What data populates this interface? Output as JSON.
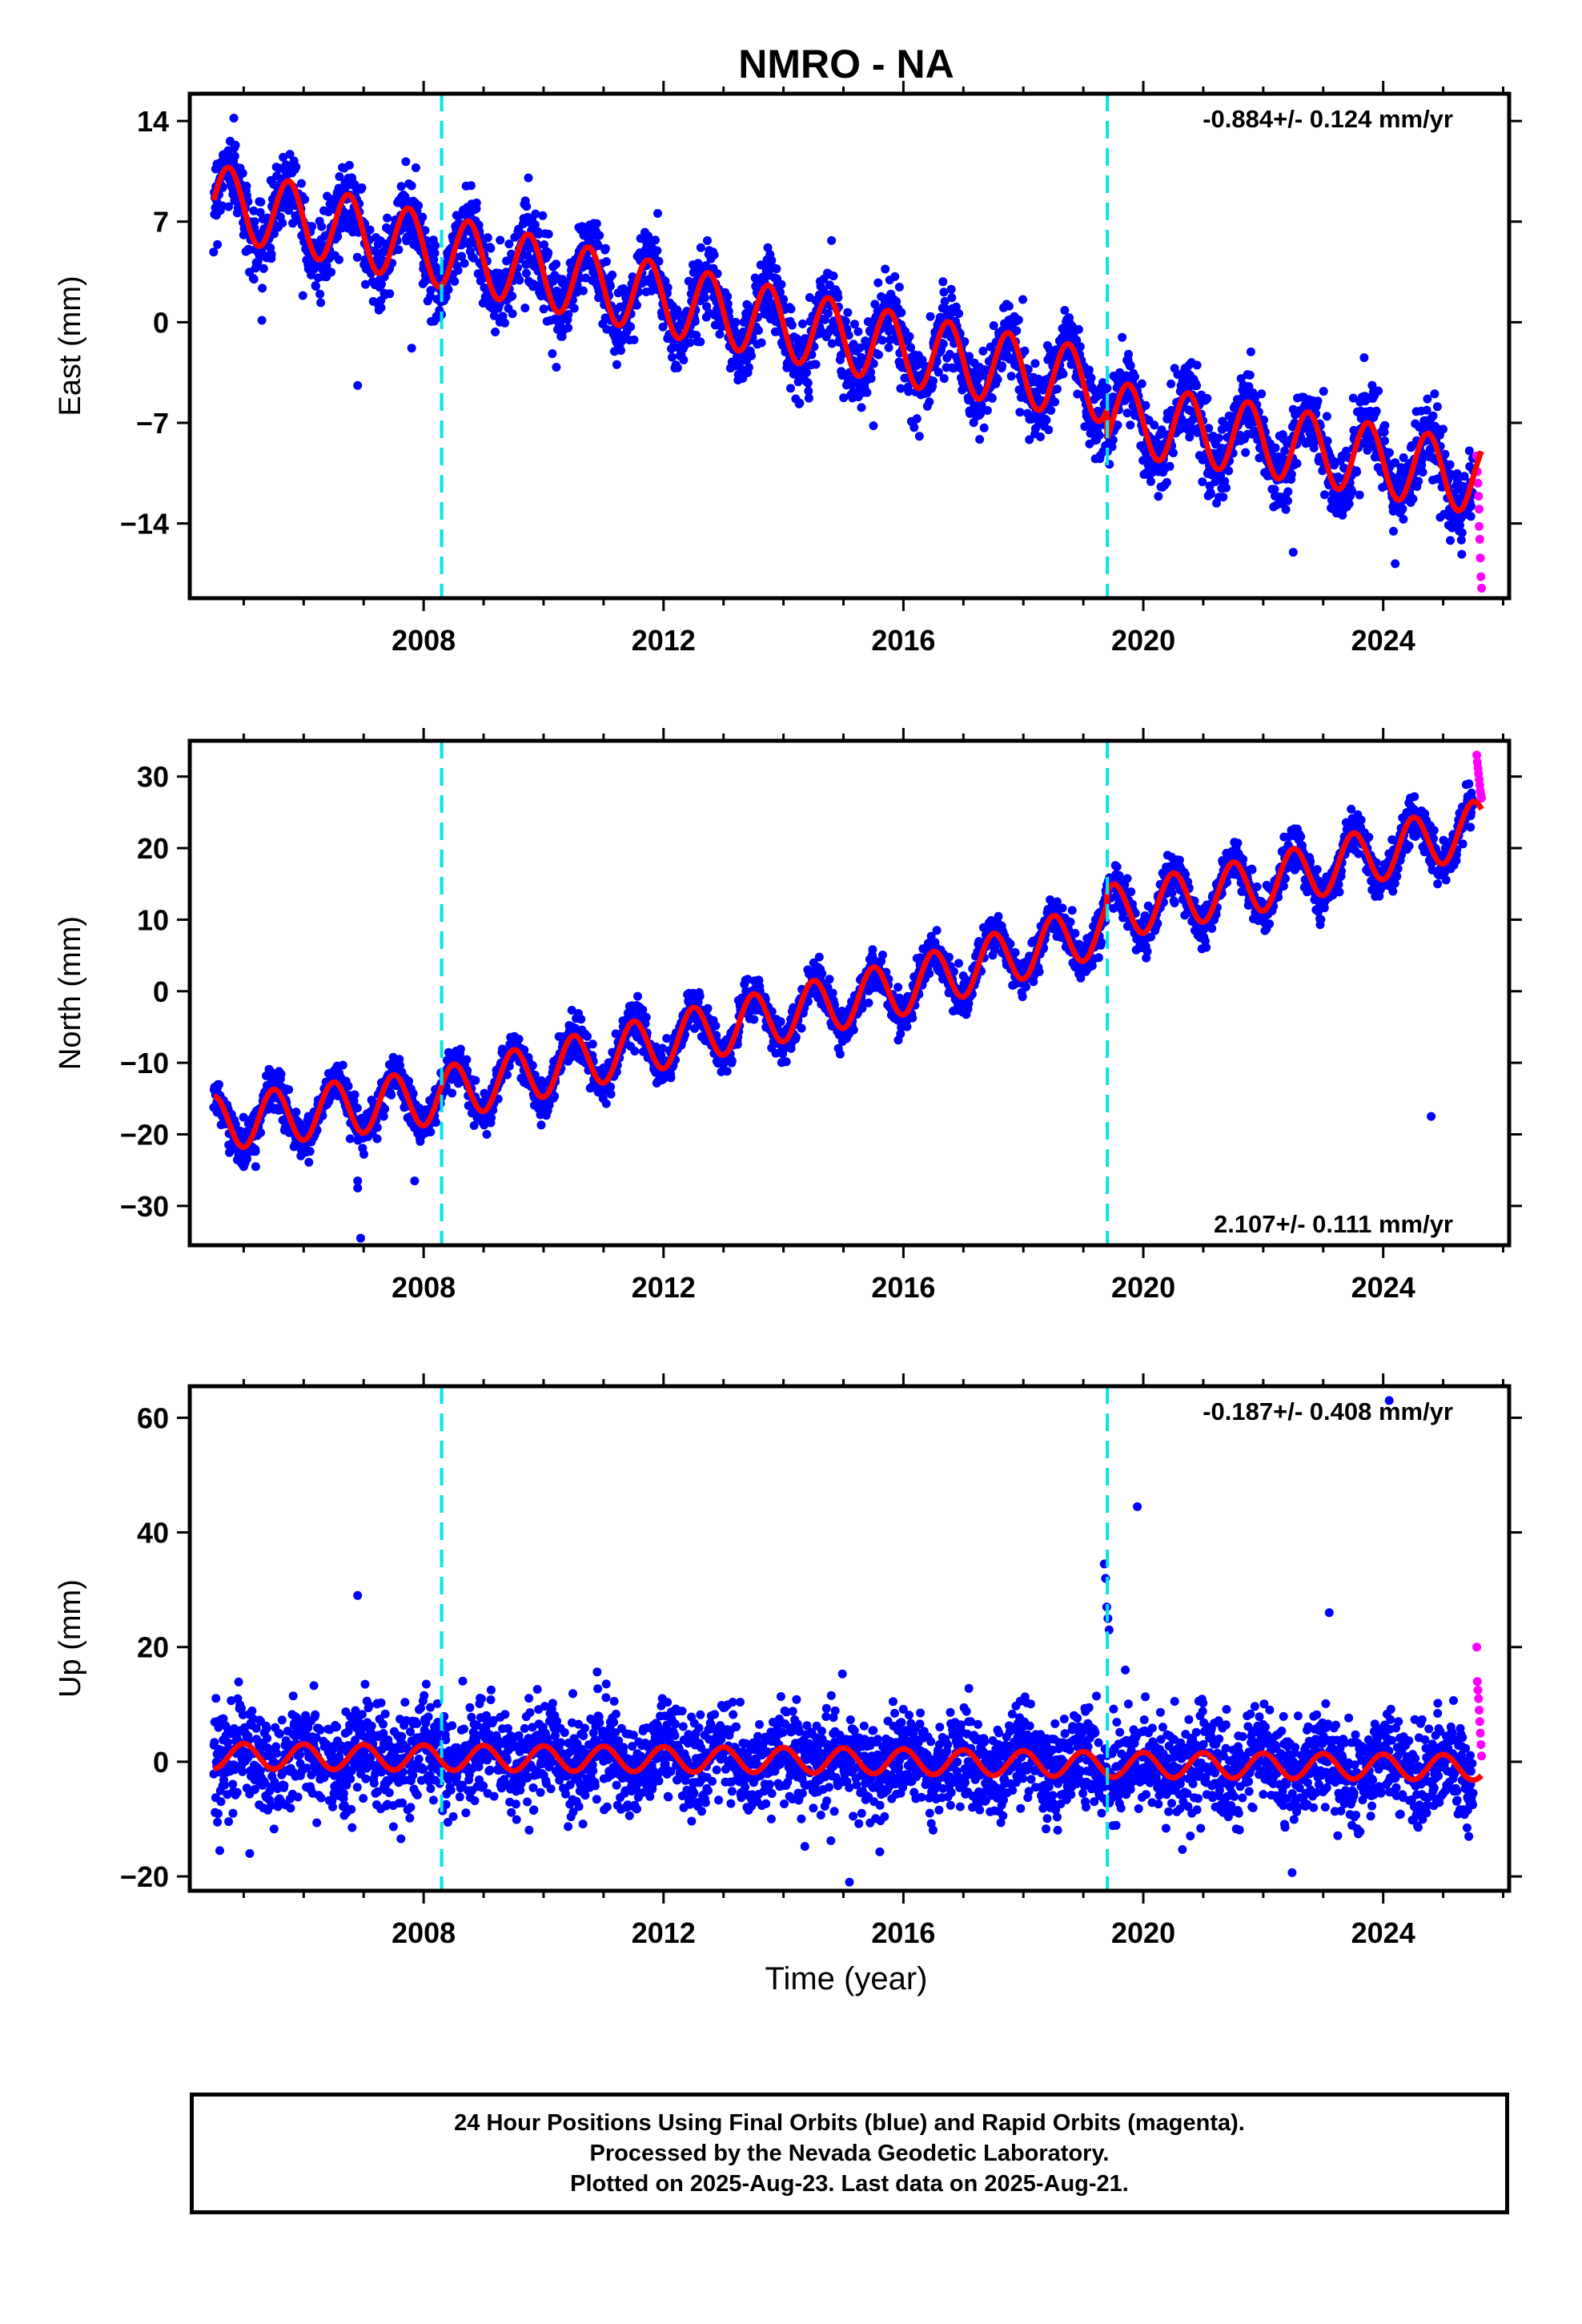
{
  "title": "NMRO - NA",
  "xlabel": "Time (year)",
  "colors": {
    "final_orbits": "#0000ff",
    "rapid_orbits": "#ff00ff",
    "model_fit": "#ff0000",
    "event_lines": "#00e5ee"
  },
  "footer": {
    "line1": "24 Hour Positions Using Final Orbits (blue) and Rapid Orbits (magenta).",
    "line2": "Processed by the Nevada Geodetic Laboratory.",
    "line3": "Plotted on 2025-Aug-23. Last data on 2025-Aug-21."
  },
  "chart_data": [
    {
      "type": "scatter",
      "ylabel": "East (mm)",
      "rate_label": "-0.884+/- 0.124 mm/yr",
      "rate_label_position": "top-right",
      "xlim": [
        2004.1,
        2026.1
      ],
      "ylim": [
        -19.2,
        15.9
      ],
      "xticks": [
        2008,
        2012,
        2016,
        2020,
        2024
      ],
      "yticks": [
        14,
        7,
        0,
        -7,
        -14
      ],
      "event_lines_x": [
        2008.3,
        2019.4
      ],
      "data_start": 2004.5,
      "data_end": 2025.64,
      "rapid_start": 2025.5,
      "model": {
        "segments": [
          {
            "start": 2004.5,
            "end": 2019.4,
            "knots": [
              [
                2004.5,
                8.5
              ],
              [
                2008.0,
                5.2
              ],
              [
                2012.0,
                1.6
              ],
              [
                2016.0,
                -1.9
              ],
              [
                2019.4,
                -4.5
              ]
            ]
          },
          {
            "start": 2019.4,
            "end": 2025.64,
            "knots": [
              [
                2019.4,
                -6.6
              ],
              [
                2022.0,
                -8.2
              ],
              [
                2025.64,
                -10.9
              ]
            ]
          }
        ],
        "annual_amplitude": 2.5,
        "annual_phase": 0.75
      },
      "scatter_noise": 1.3,
      "outliers": [
        [
          2006.9,
          -4.4
        ],
        [
          2007.8,
          -1.8
        ],
        [
          2015.5,
          -7.2
        ],
        [
          2019.2,
          -9.5
        ],
        [
          2022.5,
          -16.0
        ],
        [
          2024.2,
          -16.8
        ]
      ],
      "rapid_points": [
        [
          2025.56,
          -9.3
        ],
        [
          2025.57,
          -10.4
        ],
        [
          2025.58,
          -11.2
        ],
        [
          2025.59,
          -12.1
        ],
        [
          2025.6,
          -13.0
        ],
        [
          2025.6,
          -14.2
        ],
        [
          2025.61,
          -15.1
        ],
        [
          2025.62,
          -16.4
        ],
        [
          2025.63,
          -17.7
        ],
        [
          2025.64,
          -18.5
        ]
      ]
    },
    {
      "type": "scatter",
      "ylabel": "North (mm)",
      "rate_label": "2.107+/- 0.111 mm/yr",
      "rate_label_position": "bottom-right",
      "xlim": [
        2004.1,
        2026.1
      ],
      "ylim": [
        -35.5,
        35.0
      ],
      "xticks": [
        2008,
        2012,
        2016,
        2020,
        2024
      ],
      "yticks": [
        30,
        20,
        10,
        0,
        -10,
        -20,
        -30
      ],
      "event_lines_x": [
        2008.3,
        2019.4
      ],
      "data_start": 2004.5,
      "data_end": 2025.64,
      "rapid_start": 2025.5,
      "model": {
        "segments": [
          {
            "start": 2004.5,
            "end": 2019.4,
            "knots": [
              [
                2004.5,
                -18.5
              ],
              [
                2008.0,
                -15.0
              ],
              [
                2012.0,
                -7.0
              ],
              [
                2016.0,
                0.5
              ],
              [
                2019.4,
                9.0
              ]
            ]
          },
          {
            "start": 2019.4,
            "end": 2025.64,
            "knots": [
              [
                2019.4,
                11.0
              ],
              [
                2022.0,
                15.0
              ],
              [
                2025.64,
                23.0
              ]
            ]
          }
        ],
        "annual_amplitude": 3.8,
        "annual_phase": 0.5
      },
      "scatter_noise": 1.4,
      "outliers": [
        [
          2005.0,
          -24.5
        ],
        [
          2005.2,
          -24.5
        ],
        [
          2006.9,
          -26.5
        ],
        [
          2006.9,
          -27.5
        ],
        [
          2006.95,
          -34.5
        ],
        [
          2007.85,
          -26.5
        ],
        [
          2024.8,
          -17.5
        ]
      ],
      "rapid_points": [
        [
          2025.56,
          33.0
        ],
        [
          2025.57,
          32.0
        ],
        [
          2025.58,
          31.2
        ],
        [
          2025.59,
          30.4
        ],
        [
          2025.6,
          29.6
        ],
        [
          2025.61,
          28.8
        ],
        [
          2025.62,
          28.0
        ],
        [
          2025.63,
          27.4
        ],
        [
          2025.64,
          27.0
        ]
      ]
    },
    {
      "type": "scatter",
      "ylabel": "Up (mm)",
      "rate_label": "-0.187+/- 0.408 mm/yr",
      "rate_label_position": "top-right",
      "xlim": [
        2004.1,
        2026.1
      ],
      "ylim": [
        -22.5,
        65.5
      ],
      "xticks": [
        2008,
        2012,
        2016,
        2020,
        2024
      ],
      "yticks": [
        60,
        40,
        20,
        0,
        -20
      ],
      "event_lines_x": [
        2008.3,
        2019.4
      ],
      "data_start": 2004.5,
      "data_end": 2025.64,
      "rapid_start": 2025.5,
      "model": {
        "segments": [
          {
            "start": 2004.5,
            "end": 2025.64,
            "knots": [
              [
                2004.5,
                1.0
              ],
              [
                2015.0,
                0.2
              ],
              [
                2019.4,
                -0.5
              ],
              [
                2025.64,
                -1.0
              ]
            ]
          }
        ],
        "annual_amplitude": 2.2,
        "annual_phase": 0.0
      },
      "scatter_noise": 4.3,
      "outliers": [
        [
          2006.9,
          29.0
        ],
        [
          2019.35,
          34.5
        ],
        [
          2019.37,
          32.0
        ],
        [
          2019.39,
          27.0
        ],
        [
          2019.41,
          25.0
        ],
        [
          2019.43,
          23.0
        ],
        [
          2019.7,
          16.0
        ],
        [
          2019.9,
          44.5
        ],
        [
          2023.1,
          26.0
        ],
        [
          2024.1,
          63.0
        ],
        [
          2015.1,
          -21.0
        ],
        [
          2005.1,
          -16.0
        ],
        [
          2004.6,
          -15.5
        ]
      ],
      "rapid_points": [
        [
          2025.56,
          20.0
        ],
        [
          2025.57,
          14.0
        ],
        [
          2025.58,
          12.5
        ],
        [
          2025.59,
          11.0
        ],
        [
          2025.6,
          9.0
        ],
        [
          2025.61,
          7.0
        ],
        [
          2025.62,
          5.0
        ],
        [
          2025.63,
          3.0
        ],
        [
          2025.64,
          1.0
        ]
      ]
    }
  ]
}
